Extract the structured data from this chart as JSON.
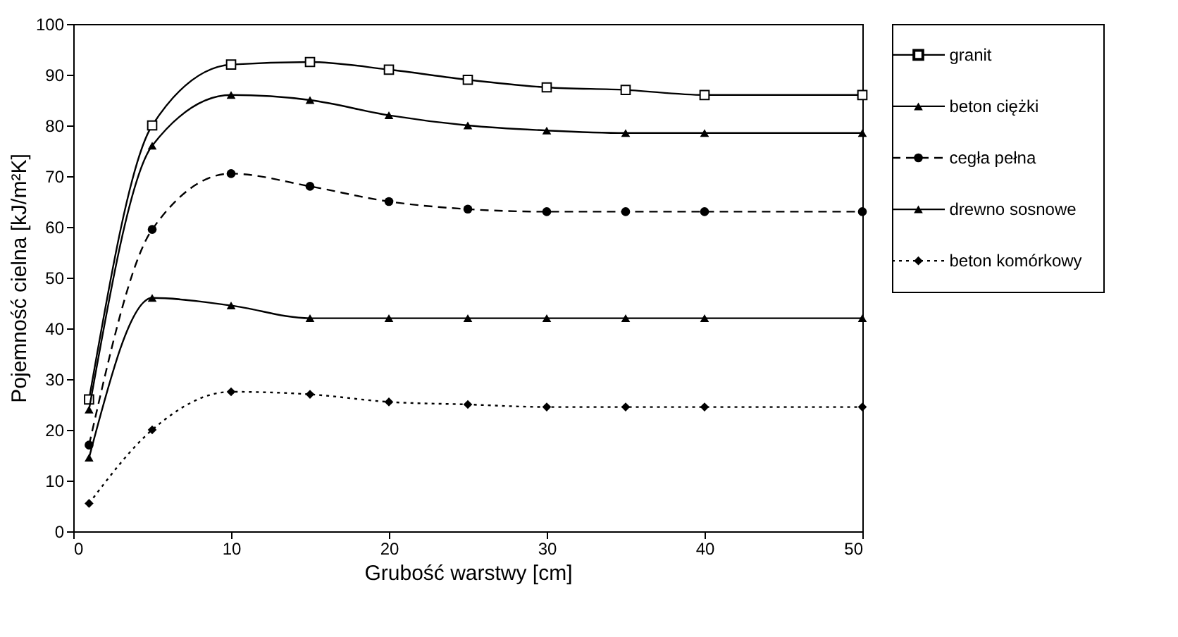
{
  "chart_data": {
    "type": "line",
    "xlabel": "Grubość warstwy [cm]",
    "ylabel": "Pojemność cielna [kJ/m²K]",
    "x": [
      1,
      5,
      10,
      15,
      20,
      25,
      30,
      35,
      40,
      50
    ],
    "xlim": [
      0,
      50
    ],
    "xticks": [
      0,
      10,
      20,
      30,
      40,
      50
    ],
    "ylim": [
      0,
      100
    ],
    "yticks": [
      0,
      10,
      20,
      30,
      40,
      50,
      60,
      70,
      80,
      90,
      100
    ],
    "grid": false,
    "legend": "right",
    "series": [
      {
        "name": "granit",
        "color": "#000000",
        "marker": "square",
        "line_style": "solid",
        "values": [
          26,
          80,
          92,
          92.5,
          91,
          89,
          87.5,
          87,
          86,
          86
        ]
      },
      {
        "name": "beton ciężki",
        "color": "#000000",
        "marker": "triangle",
        "line_style": "solid",
        "values": [
          24,
          76,
          86,
          85,
          82,
          80,
          79,
          78.5,
          78.5,
          78.5
        ]
      },
      {
        "name": "cegła pełna",
        "color": "#000000",
        "marker": "circle",
        "line_style": "dashed",
        "values": [
          17,
          59.5,
          70.5,
          68,
          65,
          63.5,
          63,
          63,
          63,
          63
        ]
      },
      {
        "name": "drewno sosnowe",
        "color": "#000000",
        "marker": "triangle",
        "line_style": "solid",
        "values": [
          14.5,
          46,
          44.5,
          42,
          42,
          42,
          42,
          42,
          42,
          42
        ]
      },
      {
        "name": "beton komórkowy",
        "color": "#000000",
        "marker": "diamond",
        "line_style": "dotted",
        "values": [
          5.5,
          20,
          27.5,
          27,
          25.5,
          25,
          24.5,
          24.5,
          24.5,
          24.5
        ]
      }
    ]
  }
}
